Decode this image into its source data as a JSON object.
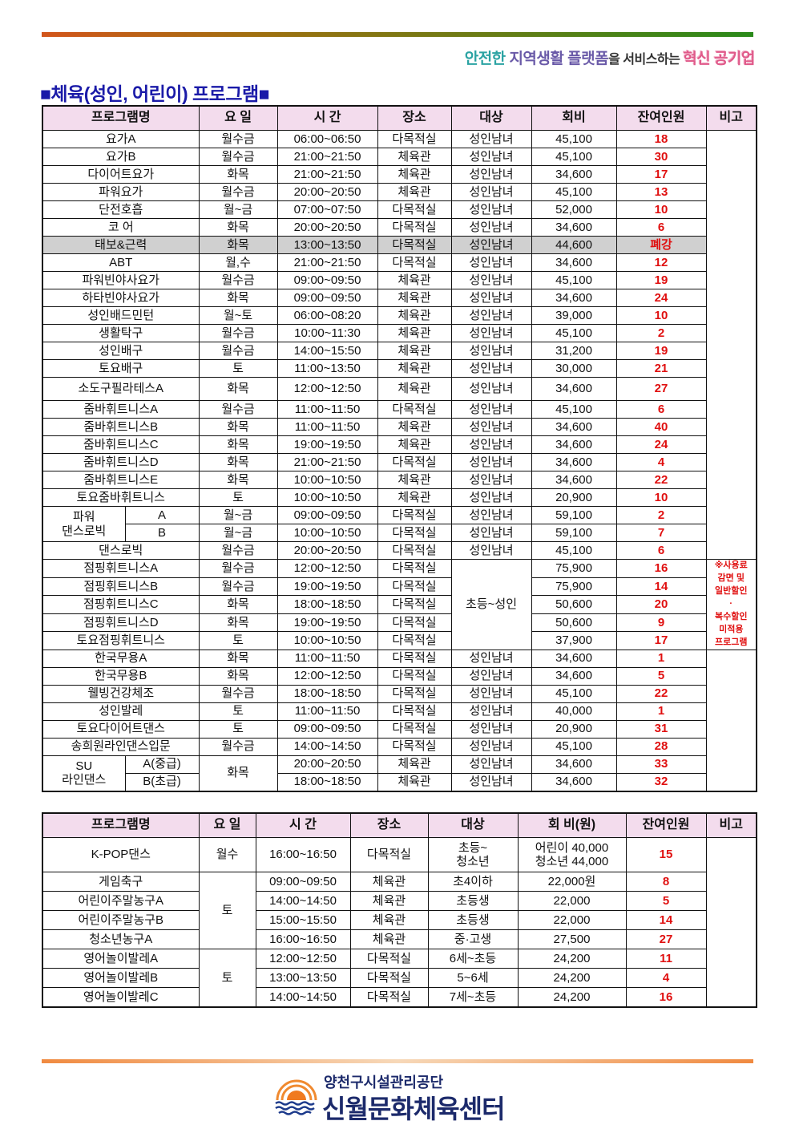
{
  "header": {
    "slogan": [
      "안전한 ",
      "지역생활 플랫폼",
      "을 서비스하는 ",
      "혁신 공기업"
    ],
    "title": "■체육(성인, 어린이) 프로그램■"
  },
  "table1": {
    "headers": [
      "프로그램명",
      "요 일",
      "시 간",
      "장소",
      "대상",
      "회비",
      "잔여인원",
      "비고"
    ],
    "rows": [
      {
        "name": "요가A",
        "day": "월수금",
        "time": "06:00~06:50",
        "place": "다목적실",
        "target": "성인남녀",
        "fee": "45,100",
        "remain": "18",
        "note": ""
      },
      {
        "name": "요가B",
        "day": "월수금",
        "time": "21:00~21:50",
        "place": "체육관",
        "target": "성인남녀",
        "fee": "45,100",
        "remain": "30",
        "note": null
      },
      {
        "name": "다이어트요가",
        "day": "화목",
        "time": "21:00~21:50",
        "place": "체육관",
        "target": "성인남녀",
        "fee": "34,600",
        "remain": "17",
        "note": null
      },
      {
        "name": "파워요가",
        "day": "월수금",
        "time": "20:00~20:50",
        "place": "체육관",
        "target": "성인남녀",
        "fee": "45,100",
        "remain": "13",
        "note": null
      },
      {
        "name": "단전호흡",
        "day": "월~금",
        "time": "07:00~07:50",
        "place": "다목적실",
        "target": "성인남녀",
        "fee": "52,000",
        "remain": "10",
        "note": null
      },
      {
        "name": "코 어",
        "day": "화목",
        "time": "20:00~20:50",
        "place": "다목적실",
        "target": "성인남녀",
        "fee": "34,600",
        "remain": "6",
        "note": null
      },
      {
        "name": "태보&근력",
        "day": "화목",
        "time": "13:00~13:50",
        "place": "다목적실",
        "target": "성인남녀",
        "fee": "44,600",
        "remain": "폐강",
        "note": null,
        "closed": true
      },
      {
        "name": "ABT",
        "day": "월,수",
        "time": "21:00~21:50",
        "place": "다목적실",
        "target": "성인남녀",
        "fee": "34,600",
        "remain": "12",
        "note": null
      },
      {
        "name": "파워빈야사요가",
        "day": "월수금",
        "time": "09:00~09:50",
        "place": "체육관",
        "target": "성인남녀",
        "fee": "45,100",
        "remain": "19",
        "note": null
      },
      {
        "name": "하타빈야사요가",
        "day": "화목",
        "time": "09:00~09:50",
        "place": "체육관",
        "target": "성인남녀",
        "fee": "34,600",
        "remain": "24",
        "note": null
      },
      {
        "name": "성인배드민턴",
        "day": "월~토",
        "time": "06:00~08:20",
        "place": "체육관",
        "target": "성인남녀",
        "fee": "39,000",
        "remain": "10",
        "note": null
      },
      {
        "name": "생활탁구",
        "day": "월수금",
        "time": "10:00~11:30",
        "place": "체육관",
        "target": "성인남녀",
        "fee": "45,100",
        "remain": "2",
        "note": null
      },
      {
        "name": "성인배구",
        "day": "월수금",
        "time": "14:00~15:50",
        "place": "체육관",
        "target": "성인남녀",
        "fee": "31,200",
        "remain": "19",
        "note": null
      },
      {
        "name": "토요배구",
        "day": "토",
        "time": "11:00~13:50",
        "place": "체육관",
        "target": "성인남녀",
        "fee": "30,000",
        "remain": "21",
        "note": null
      },
      {
        "name": "소도구필라테스A",
        "day": "화목",
        "time": "12:00~12:50",
        "place": "체육관",
        "target": "성인남녀",
        "fee": "34,600",
        "remain": "27",
        "note": null,
        "tall": true
      },
      {
        "name": "줌바휘트니스A",
        "day": "월수금",
        "time": "11:00~11:50",
        "place": "다목적실",
        "target": "성인남녀",
        "fee": "45,100",
        "remain": "6",
        "note": null
      },
      {
        "name": "줌바휘트니스B",
        "day": "화목",
        "time": "11:00~11:50",
        "place": "체육관",
        "target": "성인남녀",
        "fee": "34,600",
        "remain": "40",
        "note": null
      },
      {
        "name": "줌바휘트니스C",
        "day": "화목",
        "time": "19:00~19:50",
        "place": "체육관",
        "target": "성인남녀",
        "fee": "34,600",
        "remain": "24",
        "note": null
      },
      {
        "name": "줌바휘트니스D",
        "day": "화목",
        "time": "21:00~21:50",
        "place": "다목적실",
        "target": "성인남녀",
        "fee": "34,600",
        "remain": "4",
        "note": null
      },
      {
        "name": "줌바휘트니스E",
        "day": "화목",
        "time": "10:00~10:50",
        "place": "체육관",
        "target": "성인남녀",
        "fee": "34,600",
        "remain": "22",
        "note": null
      },
      {
        "name": "토요줌바휘트니스",
        "day": "토",
        "time": "10:00~10:50",
        "place": "체육관",
        "target": "성인남녀",
        "fee": "20,900",
        "remain": "10",
        "note": null
      },
      {
        "name": "파워\n댄스로빅",
        "sub": "A",
        "day": "월~금",
        "time": "09:00~09:50",
        "place": "다목적실",
        "target": "성인남녀",
        "fee": "59,100",
        "remain": "2",
        "note": null
      },
      {
        "name": null,
        "sub": "B",
        "day": "월~금",
        "time": "10:00~10:50",
        "place": "다목적실",
        "target": "성인남녀",
        "fee": "59,100",
        "remain": "7",
        "note": null
      },
      {
        "name": "댄스로빅",
        "day": "월수금",
        "time": "20:00~20:50",
        "place": "다목적실",
        "target": "성인남녀",
        "fee": "45,100",
        "remain": "6",
        "note": null
      },
      {
        "name": "점핑휘트니스A",
        "day": "월수금",
        "time": "12:00~12:50",
        "place": "다목적실",
        "target": "초등~성인",
        "fee": "75,900",
        "remain": "16",
        "note": "※사용료\n감면 및\n일반할인\n·\n복수할인\n미적용\n프로그램"
      },
      {
        "name": "점핑휘트니스B",
        "day": "월수금",
        "time": "19:00~19:50",
        "place": "다목적실",
        "target": null,
        "fee": "75,900",
        "remain": "14",
        "note": null
      },
      {
        "name": "점핑휘트니스C",
        "day": "화목",
        "time": "18:00~18:50",
        "place": "다목적실",
        "target": null,
        "fee": "50,600",
        "remain": "20",
        "note": null
      },
      {
        "name": "점핑휘트니스D",
        "day": "화목",
        "time": "19:00~19:50",
        "place": "다목적실",
        "target": null,
        "fee": "50,600",
        "remain": "9",
        "note": null
      },
      {
        "name": "토요점핑휘트니스",
        "day": "토",
        "time": "10:00~10:50",
        "place": "다목적실",
        "target": null,
        "fee": "37,900",
        "remain": "17",
        "note": null
      },
      {
        "name": "한국무용A",
        "day": "화목",
        "time": "11:00~11:50",
        "place": "다목적실",
        "target": "성인남녀",
        "fee": "34,600",
        "remain": "1",
        "note": ""
      },
      {
        "name": "한국무용B",
        "day": "화목",
        "time": "12:00~12:50",
        "place": "다목적실",
        "target": "성인남녀",
        "fee": "34,600",
        "remain": "5",
        "note": null
      },
      {
        "name": "웰빙건강체조",
        "day": "월수금",
        "time": "18:00~18:50",
        "place": "다목적실",
        "target": "성인남녀",
        "fee": "45,100",
        "remain": "22",
        "note": null
      },
      {
        "name": "성인발레",
        "day": "토",
        "time": "11:00~11:50",
        "place": "다목적실",
        "target": "성인남녀",
        "fee": "40,000",
        "remain": "1",
        "note": null
      },
      {
        "name": "토요다이어트댄스",
        "day": "토",
        "time": "09:00~09:50",
        "place": "다목적실",
        "target": "성인남녀",
        "fee": "20,900",
        "remain": "31",
        "note": null
      },
      {
        "name": "송희원라인댄스입문",
        "day": "월수금",
        "time": "14:00~14:50",
        "place": "다목적실",
        "target": "성인남녀",
        "fee": "45,100",
        "remain": "28",
        "note": null
      },
      {
        "name": "SU\n라인댄스",
        "sub": "A(중급)",
        "day": "화목",
        "time": "20:00~20:50",
        "place": "체육관",
        "target": "성인남녀",
        "fee": "34,600",
        "remain": "33",
        "note": null
      },
      {
        "name": null,
        "sub": "B(초급)",
        "day": null,
        "time": "18:00~18:50",
        "place": "체육관",
        "target": "성인남녀",
        "fee": "34,600",
        "remain": "32",
        "note": null
      }
    ]
  },
  "table2": {
    "headers": [
      "프로그램명",
      "요 일",
      "시 간",
      "장소",
      "대상",
      "회 비(원)",
      "잔여인원",
      "비고"
    ],
    "rows": [
      {
        "name": "K-POP댄스",
        "day": "월수",
        "time": "16:00~16:50",
        "place": "다목적실",
        "target": "초등~\n청소년",
        "fee": "어린이  40,000\n청소년  44,000",
        "remain": "15",
        "note": "",
        "kpop": true
      },
      {
        "name": "게임축구",
        "day": "토",
        "time": "09:00~09:50",
        "place": "체육관",
        "target": "초4이하",
        "fee": "22,000원",
        "remain": "8",
        "note": null
      },
      {
        "name": "어린이주말농구A",
        "day": null,
        "time": "14:00~14:50",
        "place": "체육관",
        "target": "초등생",
        "fee": "22,000",
        "remain": "5",
        "note": null
      },
      {
        "name": "어린이주말농구B",
        "day": null,
        "time": "15:00~15:50",
        "place": "체육관",
        "target": "초등생",
        "fee": "22,000",
        "remain": "14",
        "note": null
      },
      {
        "name": "청소년농구A",
        "day": null,
        "time": "16:00~16:50",
        "place": "체육관",
        "target": "중·고생",
        "fee": "27,500",
        "remain": "27",
        "note": null
      },
      {
        "name": "영어놀이발레A",
        "day": "토",
        "time": "12:00~12:50",
        "place": "다목적실",
        "target": "6세~초등",
        "fee": "24,200",
        "remain": "11",
        "note": null
      },
      {
        "name": "영어놀이발레B",
        "day": null,
        "time": "13:00~13:50",
        "place": "다목적실",
        "target": "5~6세",
        "fee": "24,200",
        "remain": "4",
        "note": null
      },
      {
        "name": "영어놀이발레C",
        "day": null,
        "time": "14:00~14:50",
        "place": "다목적실",
        "target": "7세~초등",
        "fee": "24,200",
        "remain": "16",
        "note": null
      }
    ]
  },
  "footer": {
    "org": "양천구시설관리공단",
    "center": "신월문화체육센터"
  },
  "colors": {
    "title": "#1a1aa8",
    "remain": "#e01010",
    "header_bg": "#f3dced",
    "closed_row_bg": "#d0d0d0"
  }
}
